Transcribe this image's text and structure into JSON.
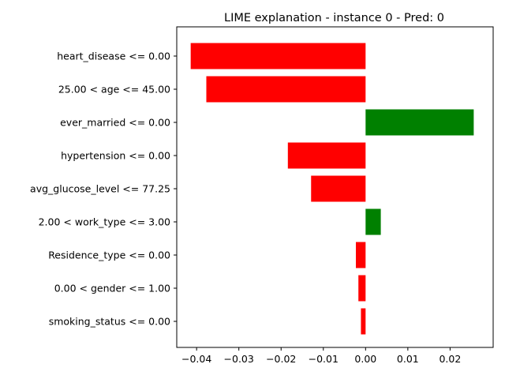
{
  "chart_data": {
    "type": "bar",
    "orientation": "horizontal",
    "title": "LIME explanation - instance 0 - Pred: 0",
    "xlabel": "",
    "ylabel": "",
    "xlim": [
      -0.0447,
      0.0302
    ],
    "xticks": [
      -0.04,
      -0.03,
      -0.02,
      -0.01,
      0.0,
      0.01,
      0.02
    ],
    "xtick_labels": [
      "−0.04",
      "−0.03",
      "−0.02",
      "−0.01",
      "0.00",
      "0.01",
      "0.02"
    ],
    "categories": [
      "heart_disease <= 0.00",
      "25.00 < age <= 45.00",
      "ever_married <= 0.00",
      "hypertension <= 0.00",
      "avg_glucose_level <= 77.25",
      "2.00 < work_type <= 3.00",
      "Residence_type <= 0.00",
      "0.00 < gender <= 1.00",
      "smoking_status <= 0.00"
    ],
    "values": [
      -0.0414,
      -0.0377,
      0.0256,
      -0.0184,
      -0.0129,
      0.0036,
      -0.0023,
      -0.0017,
      -0.0011
    ],
    "colors": {
      "positive": "#008000",
      "negative": "#ff0000"
    },
    "grid": false,
    "legend": "none"
  }
}
